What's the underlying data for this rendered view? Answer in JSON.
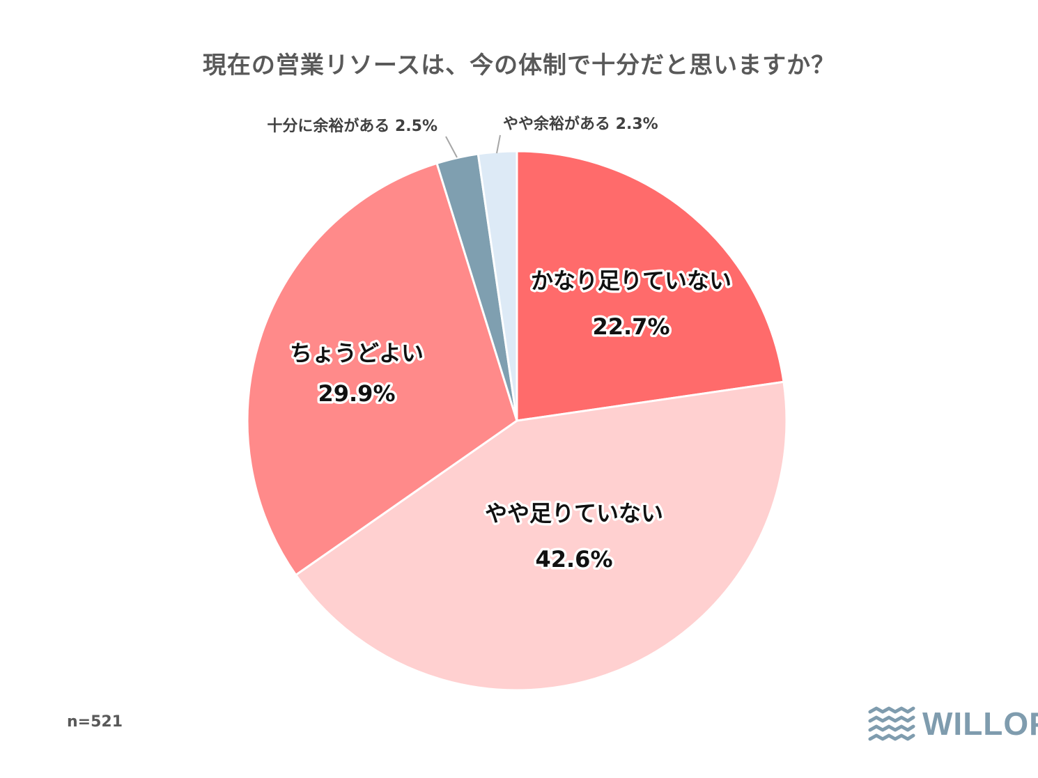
{
  "chart_data": {
    "type": "pie",
    "title": "現在の営業リソースは、今の体制で十分だと思いますか？",
    "start_angle_deg": 0,
    "direction": "clockwise",
    "slices": [
      {
        "label": "かなり足りていない",
        "value": 22.7,
        "value_label": "22.7%",
        "color": "#ff6b6b",
        "label_placement": "inside"
      },
      {
        "label": "やや足りていない",
        "value": 42.6,
        "value_label": "42.6%",
        "color": "#ffd0d0",
        "label_placement": "inside"
      },
      {
        "label": "ちょうどよい",
        "value": 29.9,
        "value_label": "29.9%",
        "color": "#ff8a8a",
        "label_placement": "inside"
      },
      {
        "label": "十分に余裕がある",
        "value": 2.5,
        "value_label": "2.5%",
        "color": "#7f9fb0",
        "label_placement": "outside"
      },
      {
        "label": "やや余裕がある",
        "value": 2.3,
        "value_label": "2.3%",
        "color": "#ddeaf6",
        "label_placement": "outside"
      }
    ],
    "note": "n=521"
  },
  "logo": {
    "text": "WILLOF",
    "color": "#7f9cae"
  }
}
